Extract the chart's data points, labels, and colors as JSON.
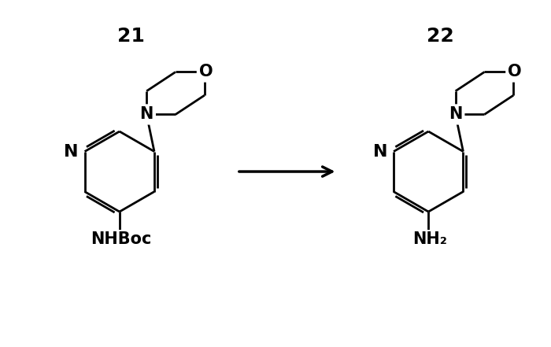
{
  "bg_color": "#ffffff",
  "line_color": "#000000",
  "line_width": 2.0,
  "font_size_label": 17,
  "font_size_atom": 14,
  "font_size_group": 14,
  "label_21": "21",
  "label_22": "22",
  "group_left": "NHBoc",
  "group_right": "NH₂",
  "atom_N_pyr": "N",
  "atom_N_morph": "N",
  "atom_O_morph": "O",
  "figsize": [
    7.0,
    4.41
  ],
  "dpi": 100
}
